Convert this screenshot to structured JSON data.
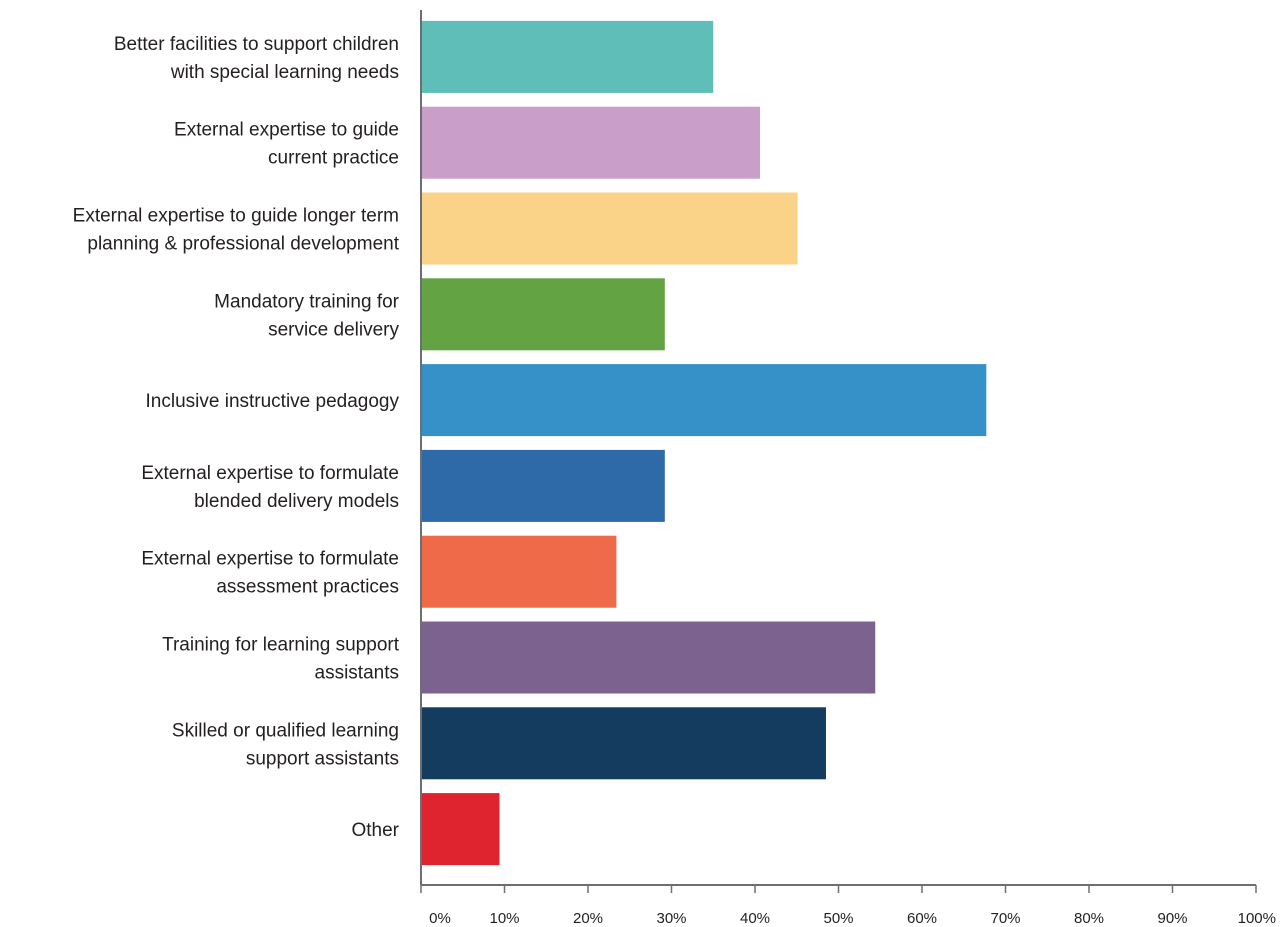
{
  "chart_data": {
    "type": "bar",
    "orientation": "horizontal",
    "title": "",
    "xlabel": "",
    "ylabel": "",
    "xlim": [
      0,
      100
    ],
    "grid": false,
    "legend": "none",
    "x_ticks": [
      "0%",
      "10%",
      "20%",
      "30%",
      "40%",
      "50%",
      "60%",
      "70%",
      "80%",
      "90%",
      "100%"
    ],
    "categories": [
      [
        "Better facilities to support children",
        "with special learning needs"
      ],
      [
        "External expertise to guide",
        "current practice"
      ],
      [
        "External expertise to guide longer term",
        "planning & professional development"
      ],
      [
        "Mandatory training for",
        "service delivery"
      ],
      [
        "Inclusive instructive pedagogy"
      ],
      [
        "External expertise to formulate",
        "blended delivery models"
      ],
      [
        "External expertise to formulate",
        "assessment practices"
      ],
      [
        "Training for learning support",
        "assistants"
      ],
      [
        "Skilled or qualified learning",
        "support assistants"
      ],
      [
        "Other"
      ]
    ],
    "values": [
      35,
      40.6,
      45.1,
      29.2,
      67.7,
      29.2,
      23.4,
      54.4,
      48.5,
      9.4
    ],
    "colors": [
      "#5fbfb8",
      "#c99fc9",
      "#fad388",
      "#64a343",
      "#3591c8",
      "#2d6aa7",
      "#ee6a49",
      "#7b628f",
      "#143c5e",
      "#df2430"
    ]
  }
}
